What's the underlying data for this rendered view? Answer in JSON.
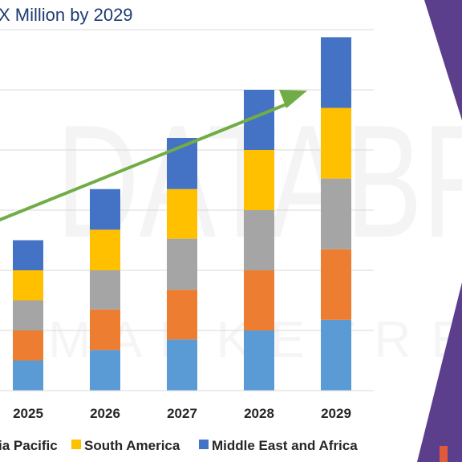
{
  "chart_data": {
    "type": "bar",
    "stacked": true,
    "title": "X Million by 2029",
    "categories": [
      "2025",
      "2026",
      "2027",
      "2028",
      "2029"
    ],
    "series": [
      {
        "name": "",
        "color": "#5b9bd5",
        "values": [
          1.0,
          1.35,
          1.7,
          2.0,
          2.35
        ]
      },
      {
        "name": "",
        "color": "#ed7d31",
        "values": [
          1.0,
          1.35,
          1.65,
          2.0,
          2.35
        ]
      },
      {
        "name": "",
        "color": "#a5a5a5",
        "values": [
          1.0,
          1.3,
          1.7,
          2.0,
          2.35
        ]
      },
      {
        "name": "South America",
        "color": "#ffc000",
        "values": [
          1.0,
          1.35,
          1.65,
          2.0,
          2.35
        ]
      },
      {
        "name": "Middle East and Africa",
        "color": "#4472c4",
        "values": [
          1.0,
          1.35,
          1.7,
          2.0,
          2.35
        ]
      }
    ],
    "legend": {
      "placement": "bottom",
      "entries": [
        {
          "name": "ia Pacific",
          "color": "",
          "swatch": false
        },
        {
          "name": "South America",
          "color": "#ffc000",
          "swatch": true
        },
        {
          "name": "Middle East and Africa",
          "color": "#4472c4",
          "swatch": true
        }
      ]
    },
    "trend_arrow": {
      "color": "#70ad47",
      "from_category": "2024",
      "to_category": "2029"
    },
    "ylim": [
      0,
      12
    ],
    "grid": true,
    "xlabel": "",
    "ylabel": ""
  },
  "watermark": {
    "main": "DATABR",
    "sub": "M A R K E T R E"
  },
  "decor": {
    "accent": "#5b3f8c"
  }
}
